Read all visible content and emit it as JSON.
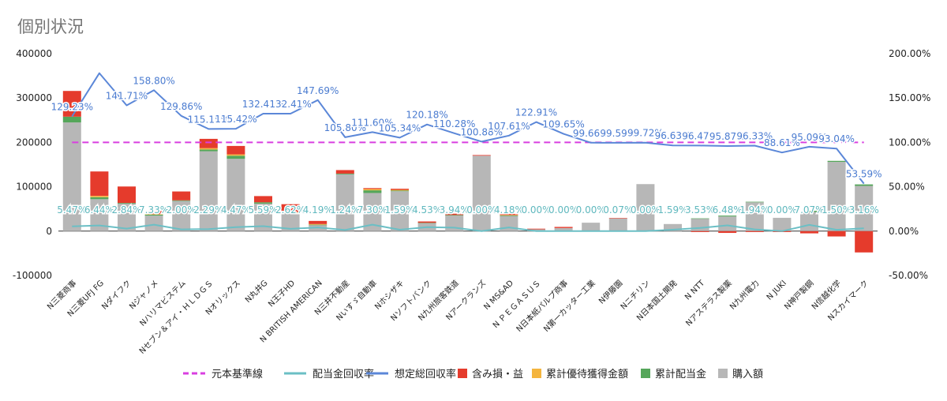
{
  "chart_data": {
    "type": "bar",
    "title": "個別状況",
    "categories": [
      "N三菱商事",
      "N三菱UFJ FG",
      "Nダイフク",
      "Nジャノメ",
      "Nハリマビステム",
      "Nセブン＆アイ・ＨＬＤＧＳ",
      "Nオリックス",
      "N丸井G",
      "N王子HD",
      "N BRITISH AMERICAN",
      "N三井不動産",
      "Nいすゞ自動車",
      "Nホシザキ",
      "Nソフトバンク",
      "N九州旅客鉄道",
      "Nアークランズ",
      "N MS&AD",
      "N ＰＥＧＡＳＵＳ",
      "N日本紙パルプ商事",
      "N第一カッター工業",
      "N伊藤園",
      "Nニチリン",
      "N日本国土開発",
      "N NTT",
      "Nアステラス製薬",
      "N九州電力",
      "N JUKI",
      "N神戸製鋼",
      "N信越化学",
      "Nスカイマーク"
    ],
    "stacked_series": [
      {
        "name": "購入額",
        "color": "#b7b7b7",
        "values": [
          245000,
          72000,
          62000,
          35000,
          68000,
          180000,
          163000,
          62000,
          40000,
          14000,
          128000,
          86000,
          90000,
          18000,
          35000,
          170000,
          34000,
          4000,
          7000,
          19000,
          29000,
          106000,
          16000,
          28000,
          33000,
          65000,
          30000,
          43000,
          156000,
          102000
        ]
      },
      {
        "name": "累計配当金",
        "color": "#55a65a",
        "values": [
          13000,
          4500,
          1600,
          2300,
          1400,
          4000,
          7000,
          3000,
          1200,
          500,
          1600,
          6000,
          1500,
          800,
          1300,
          0,
          1400,
          0,
          0,
          0,
          0,
          0,
          0,
          800,
          2000,
          1200,
          0,
          2800,
          2400,
          3300
        ]
      },
      {
        "name": "累計優待獲得金額",
        "color": "#f4b53f",
        "values": [
          0,
          3000,
          0,
          1000,
          0,
          3000,
          3000,
          0,
          1500,
          1500,
          0,
          3000,
          1500,
          0,
          0,
          0,
          1000,
          0,
          0,
          0,
          0,
          0,
          0,
          0,
          0,
          0,
          0,
          0,
          0,
          0
        ]
      },
      {
        "name": "含み損・益",
        "color": "#e53b2c",
        "values": [
          58000,
          55000,
          37000,
          7000,
          20000,
          21000,
          19000,
          14000,
          18000,
          7000,
          8000,
          2000,
          2500,
          3000,
          3000,
          1500,
          2500,
          1500,
          2500,
          0,
          500,
          0,
          0,
          -2000,
          -4000,
          -2000,
          -2000,
          -5000,
          -12000,
          -48000
        ]
      }
    ],
    "line_series": [
      {
        "name": "元本基準線",
        "color": "#d93fe0",
        "axis": "right",
        "dashed": true,
        "values": [
          100,
          100,
          100,
          100,
          100,
          100,
          100,
          100,
          100,
          100,
          100,
          100,
          100,
          100,
          100,
          100,
          100,
          100,
          100,
          100,
          100,
          100,
          100,
          100,
          100,
          100,
          100,
          100,
          100,
          100
        ]
      },
      {
        "name": "配当金回収率",
        "color": "#6bbfc5",
        "axis": "right",
        "values": [
          5.47,
          6.44,
          2.84,
          7.33,
          2.0,
          2.29,
          4.47,
          5.59,
          2.62,
          4.19,
          1.24,
          7.3,
          1.59,
          4.53,
          3.94,
          0.0,
          4.18,
          0.0,
          0.0,
          0.0,
          0.07,
          0.0,
          1.59,
          3.53,
          6.48,
          1.94,
          0.0,
          7.07,
          1.5,
          3.16
        ]
      },
      {
        "name": "想定総回収率",
        "color": "#5b87d8",
        "axis": "right",
        "values": [
          129.23,
          178,
          141.71,
          158.8,
          129.86,
          115.15,
          115.42,
          132.41,
          132.41,
          147.69,
          105.8,
          111.6,
          105.34,
          120.18,
          110.28,
          100.88,
          107.61,
          122.91,
          109.65,
          99.66,
          99.59,
          99.72,
          96.63,
          96.47,
          95.87,
          96.33,
          88.61,
          95.09,
          93.04,
          53.59
        ]
      }
    ],
    "total_labels": [
      "129.23%",
      "",
      "141.71%",
      "158.80%",
      "129.86%",
      "115.15%",
      "115.42%",
      "132.41%",
      "132.41%",
      "147.69%",
      "105.80%",
      "111.60%",
      "105.34%",
      "120.18%",
      "110.28%",
      "100.88%",
      "107.61%",
      "122.91%",
      "109.65%",
      "99.66%",
      "99.59%",
      "99.72%",
      "96.63%",
      "96.47%",
      "95.87%",
      "96.33%",
      "88.61%",
      "95.09%",
      "93.04%",
      "53.59%"
    ],
    "dividend_labels": [
      "5.47%",
      "6.44%",
      "2.84%",
      "7.33%",
      "2.00%",
      "2.29%",
      "4.47%",
      "5.59%",
      "2.62%",
      "4.19%",
      "1.24%",
      "7.30%",
      "1.59%",
      "4.53%",
      "3.94%",
      "0.00%",
      "4.18%",
      "0.00%",
      "0.00%",
      "0.00%",
      "0.07%",
      "0.00%",
      "1.59%",
      "3.53%",
      "6.48%",
      "1.94%",
      "0.00%",
      "7.07%",
      "1.50%",
      "3.16%"
    ],
    "ylim": [
      -100000,
      400000
    ],
    "ylim_right": [
      -50,
      200
    ],
    "left_ticks": [
      "400000",
      "300000",
      "200000",
      "100000",
      "0",
      "-100000"
    ],
    "right_ticks": [
      "200.00%",
      "150.00%",
      "100.00%",
      "50.00%",
      "0.00%",
      "-50.00%"
    ],
    "legend": [
      "元本基準線",
      "配当金回収率",
      "想定総回収率",
      "含み損・益",
      "累計優待獲得金額",
      "累計配当金",
      "購入額"
    ],
    "legend_position": "bottom",
    "grid": false
  }
}
